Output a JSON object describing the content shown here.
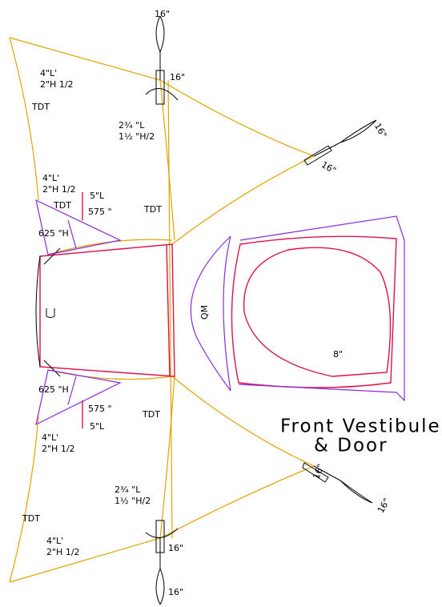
{
  "title": [
    "Front Vestibule",
    "& Door"
  ],
  "annotations": [
    "16\"",
    "16\"",
    "4\"L'",
    "2\"H 1/2",
    "TDT",
    "2¾ \"L",
    "1½ \"H/2",
    "16\"",
    "16\"",
    "4\"L'",
    "2\"H 1/2",
    "TDT",
    "5\"L",
    "575 \"",
    "TDT",
    "625 \"H",
    "QM",
    "8\"",
    "625 \"H",
    "575 \"",
    "5\"L",
    "TDT",
    "4\"L'",
    "2\"H 1/2",
    "2¾ \"L",
    "1½ \"H/2",
    "16\"",
    "16\"",
    "TDT",
    "4\"L'",
    "2\"H 1/2",
    "16\"",
    "16\""
  ]
}
